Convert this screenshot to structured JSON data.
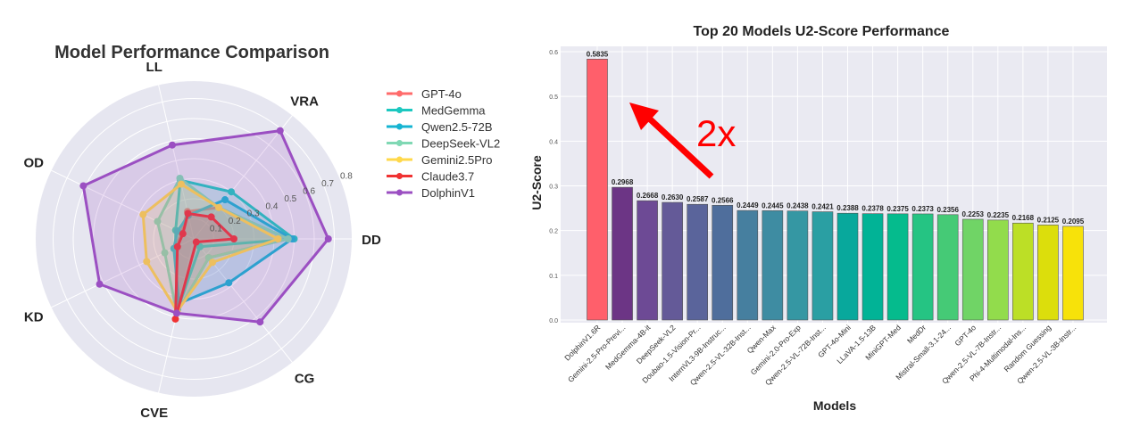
{
  "chart_data": [
    {
      "type": "radar",
      "title": "Model Performance Comparison",
      "axes": [
        "DD",
        "VRA",
        "LL",
        "OD",
        "KD",
        "CVE",
        "CG"
      ],
      "rlim": [
        0,
        0.8
      ],
      "rticks": [
        "0.1",
        "0.2",
        "0.3",
        "0.4",
        "0.5",
        "0.6",
        "0.7",
        "0.8"
      ],
      "legend_position": "right",
      "series": [
        {
          "name": "GPT-4o",
          "color": "#ff6b6b",
          "values": [
            0.47,
            0.2,
            0.14,
            0.07,
            0.1,
            0.38,
            0.12
          ]
        },
        {
          "name": "MedGemma",
          "color": "#1cc8c0",
          "values": [
            0.5,
            0.3,
            0.3,
            0.1,
            0.1,
            0.36,
            0.05
          ]
        },
        {
          "name": "Qwen2.5-72B",
          "color": "#15b4d2",
          "values": [
            0.49,
            0.25,
            0.12,
            0.09,
            0.11,
            0.33,
            0.28
          ]
        },
        {
          "name": "DeepSeek-VL2",
          "color": "#80d8b4",
          "values": [
            0.47,
            0.2,
            0.31,
            0.2,
            0.16,
            0.38,
            0.12
          ]
        },
        {
          "name": "Gemini2.5Pro",
          "color": "#ffd84a",
          "values": [
            0.42,
            0.2,
            0.28,
            0.28,
            0.26,
            0.37,
            0.15
          ]
        },
        {
          "name": "Claude3.7",
          "color": "#f03232",
          "values": [
            0.2,
            0.14,
            0.13,
            0.06,
            0.09,
            0.41,
            0.02
          ]
        },
        {
          "name": "DolphinV1",
          "color": "#9b4fc2",
          "values": [
            0.67,
            0.69,
            0.48,
            0.61,
            0.52,
            0.38,
            0.53
          ]
        }
      ]
    },
    {
      "type": "bar",
      "title": "Top 20 Models U2-Score Performance",
      "xlabel": "Models",
      "ylabel": "U2-Score",
      "ylim": [
        0,
        0.6
      ],
      "yticks": [
        "0.0",
        "0.1",
        "0.2",
        "0.3",
        "0.4",
        "0.5",
        "0.6"
      ],
      "grid": true,
      "annotation": "2x",
      "categories": [
        "DolphinV1.6R",
        "Gemini-2.5-Pro-Previ...",
        "MedGemma-4B-it",
        "DeepSeek-VL2",
        "Doubao-1.5-Vision-Pr...",
        "InternVL3-9B-Instruc...",
        "Qwen-2.5-VL-32B-Inst...",
        "Qwen-Max",
        "Gemini-2.0-Pro-Exp",
        "Qwen-2.5-VL-72B-Inst...",
        "GPT-4o-Mini",
        "LLaVA-1.5-13B",
        "MiniGPT-Med",
        "MedDr",
        "Mistral-Small-3.1-24...",
        "GPT-4o",
        "Qwen-2.5-VL-7B-Instr...",
        "Phi-4-Multimodal-Ins...",
        "Random Guessing",
        "Qwen-2.5-VL-3B-Instr..."
      ],
      "values": [
        0.5835,
        0.2968,
        0.2668,
        0.263,
        0.2587,
        0.2566,
        0.2449,
        0.2445,
        0.2438,
        0.2421,
        0.2388,
        0.2378,
        0.2375,
        0.2373,
        0.2356,
        0.2253,
        0.2235,
        0.2168,
        0.2125,
        0.2095
      ],
      "value_labels": [
        "0.5835",
        "0.2968",
        "0.2668",
        "0.2630",
        "0.2587",
        "0.2566",
        "0.2449",
        "0.2445",
        "0.2438",
        "0.2421",
        "0.2388",
        "0.2378",
        "0.2375",
        "0.2373",
        "0.2356",
        "0.2253",
        "0.2235",
        "0.2168",
        "0.2125",
        "0.2095"
      ],
      "colors": [
        "#ff5f6b",
        "#6c3585",
        "#6d4a95",
        "#645a98",
        "#5a649b",
        "#4f6e9c",
        "#467f9f",
        "#3e8ca2",
        "#3597a3",
        "#2a9fa3",
        "#08a89c",
        "#01b396",
        "#05bb8d",
        "#25c483",
        "#45ca76",
        "#70d466",
        "#92dc4c",
        "#bcdf26",
        "#dcde0c",
        "#f7e20a"
      ]
    }
  ]
}
